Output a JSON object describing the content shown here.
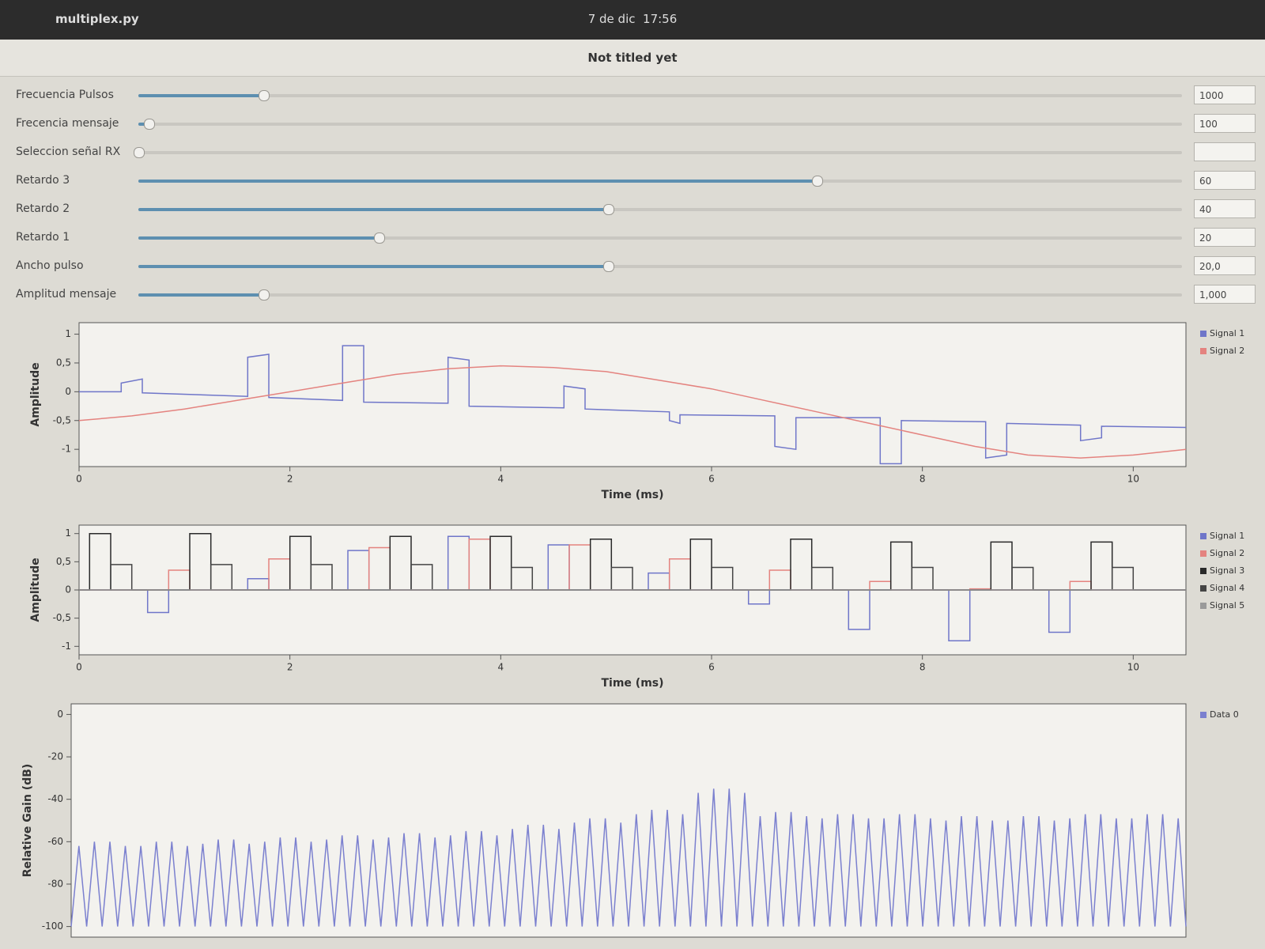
{
  "window": {
    "app_name": "multiplex.py",
    "date": "7 de dic",
    "time": "17:56",
    "title": "Not titled yet"
  },
  "sliders": [
    {
      "name": "Frecuencia Pulsos",
      "value": 1000,
      "label": "1000"
    },
    {
      "name": "Frecencia mensaje",
      "value": 100,
      "label": "100"
    },
    {
      "name": "Seleccion señal RX"
    },
    {
      "name": "Retardo 3",
      "value": 60,
      "label": "60"
    },
    {
      "name": "Retardo 2",
      "value": 40,
      "label": "40"
    },
    {
      "name": "Retardo 1",
      "value": 20,
      "label": "20"
    },
    {
      "name": "Ancho pulso",
      "value": 20,
      "label": "20,0"
    },
    {
      "name": "Amplitud mensaje",
      "value": 1,
      "label": "1,000"
    }
  ],
  "chart_data": [
    {
      "type": "line",
      "ylabel": "Amplitude",
      "xlabel": "Time (ms)",
      "xlim": [
        0,
        10.5
      ],
      "xticks": [
        0,
        2,
        4,
        6,
        8,
        10
      ],
      "ylim": [
        -1.3,
        1.2
      ],
      "yticks": [
        -1,
        {
          "value": -0.5,
          "label": "-0,5"
        },
        0,
        {
          "value": 0.5,
          "label": "0,5"
        },
        1
      ],
      "legend": "right",
      "series": [
        {
          "name": "Signal 1",
          "color": "#6f76c9",
          "x": [
            0,
            0.4,
            0.4,
            0.6,
            0.6,
            1.6,
            1.6,
            1.8,
            1.8,
            2.5,
            2.5,
            2.7,
            2.7,
            3.5,
            3.5,
            3.7,
            3.7,
            4.6,
            4.6,
            4.8,
            4.8,
            5.6,
            5.6,
            5.7,
            5.7,
            6.6,
            6.6,
            6.8,
            6.8,
            7.6,
            7.6,
            7.8,
            7.8,
            8.6,
            8.6,
            8.8,
            8.8,
            9.5,
            9.5,
            9.7,
            9.7,
            10.5
          ],
          "values": [
            0,
            0,
            0.15,
            0.22,
            -0.02,
            -0.08,
            0.6,
            0.65,
            -0.1,
            -0.15,
            0.8,
            0.8,
            -0.18,
            -0.2,
            0.6,
            0.55,
            -0.25,
            -0.28,
            0.1,
            0.05,
            -0.3,
            -0.35,
            -0.5,
            -0.55,
            -0.4,
            -0.42,
            -0.95,
            -1.0,
            -0.45,
            -0.45,
            -1.25,
            -1.25,
            -0.5,
            -0.52,
            -1.15,
            -1.1,
            -0.55,
            -0.58,
            -0.85,
            -0.8,
            -0.6,
            -0.62
          ]
        },
        {
          "name": "Signal 2",
          "color": "#e4837f",
          "x": [
            0,
            0.5,
            1,
            1.5,
            2,
            2.5,
            3,
            3.5,
            4,
            4.5,
            5,
            5.5,
            6,
            6.5,
            7,
            7.5,
            8,
            8.5,
            9,
            9.5,
            10,
            10.5
          ],
          "values": [
            -0.5,
            -0.42,
            -0.3,
            -0.15,
            0,
            0.15,
            0.3,
            0.4,
            0.45,
            0.42,
            0.35,
            0.2,
            0.05,
            -0.15,
            -0.35,
            -0.55,
            -0.75,
            -0.95,
            -1.1,
            -1.15,
            -1.1,
            -1.0
          ]
        }
      ]
    },
    {
      "type": "line",
      "ylabel": "Amplitude",
      "xlabel": "Time (ms)",
      "xlim": [
        0,
        10.5
      ],
      "xticks": [
        0,
        2,
        4,
        6,
        8,
        10
      ],
      "ylim": [
        -1.15,
        1.15
      ],
      "yticks": [
        -1,
        {
          "value": -0.5,
          "label": "-0,5"
        },
        0,
        {
          "value": 0.5,
          "label": "0,5"
        },
        1
      ],
      "legend": "right",
      "series": [
        {
          "name": "Signal 1",
          "color": "#6f76c9",
          "x": [
            0,
            0.65,
            0.65,
            0.85,
            0.85,
            1.6,
            1.6,
            1.8,
            1.8,
            2.55,
            2.55,
            2.75,
            2.75,
            3.5,
            3.5,
            3.7,
            3.7,
            4.45,
            4.45,
            4.65,
            4.65,
            5.4,
            5.4,
            5.6,
            5.6,
            6.35,
            6.35,
            6.55,
            6.55,
            7.3,
            7.3,
            7.5,
            7.5,
            8.25,
            8.25,
            8.45,
            8.45,
            9.2,
            9.2,
            9.4,
            9.4,
            10.5
          ],
          "values": [
            0,
            0,
            -0.4,
            -0.4,
            0,
            0,
            0.2,
            0.2,
            0,
            0,
            0.7,
            0.7,
            0,
            0,
            0.95,
            0.95,
            0,
            0,
            0.8,
            0.8,
            0,
            0,
            0.3,
            0.3,
            0,
            0,
            -0.25,
            -0.25,
            0,
            0,
            -0.7,
            -0.7,
            0,
            0,
            -0.9,
            -0.9,
            0,
            0,
            -0.75,
            -0.75,
            0,
            0
          ]
        },
        {
          "name": "Signal 2",
          "color": "#e4837f",
          "x": [
            0,
            0.85,
            0.85,
            1.05,
            1.05,
            1.8,
            1.8,
            2.0,
            2.0,
            2.75,
            2.75,
            2.95,
            2.95,
            3.7,
            3.7,
            3.9,
            3.9,
            4.65,
            4.65,
            4.85,
            4.85,
            5.6,
            5.6,
            5.8,
            5.8,
            6.55,
            6.55,
            6.75,
            6.75,
            7.5,
            7.5,
            7.7,
            7.7,
            8.45,
            8.45,
            8.65,
            8.65,
            9.4,
            9.4,
            9.6,
            9.6,
            10.5
          ],
          "values": [
            0,
            0,
            0.35,
            0.35,
            0,
            0,
            0.55,
            0.55,
            0,
            0,
            0.75,
            0.75,
            0,
            0,
            0.9,
            0.9,
            0,
            0,
            0.8,
            0.8,
            0,
            0,
            0.55,
            0.55,
            0,
            0,
            0.35,
            0.35,
            0,
            0,
            0.15,
            0.15,
            0,
            0,
            0.02,
            0.02,
            0,
            0,
            0.15,
            0.15,
            0,
            0
          ]
        },
        {
          "name": "Signal 3",
          "color": "#2a2a2a",
          "x": [
            0,
            0.1,
            0.1,
            0.3,
            0.3,
            1.05,
            1.05,
            1.25,
            1.25,
            2.0,
            2.0,
            2.2,
            2.2,
            2.95,
            2.95,
            3.15,
            3.15,
            3.9,
            3.9,
            4.1,
            4.1,
            4.85,
            4.85,
            5.05,
            5.05,
            5.8,
            5.8,
            6.0,
            6.0,
            6.75,
            6.75,
            6.95,
            6.95,
            7.7,
            7.7,
            7.9,
            7.9,
            8.65,
            8.65,
            8.85,
            8.85,
            9.6,
            9.6,
            9.8,
            9.8,
            10.5
          ],
          "values": [
            0,
            0,
            1.0,
            1.0,
            0,
            0,
            1.0,
            1.0,
            0,
            0,
            0.95,
            0.95,
            0,
            0,
            0.95,
            0.95,
            0,
            0,
            0.95,
            0.95,
            0,
            0,
            0.9,
            0.9,
            0,
            0,
            0.9,
            0.9,
            0,
            0,
            0.9,
            0.9,
            0,
            0,
            0.85,
            0.85,
            0,
            0,
            0.85,
            0.85,
            0,
            0,
            0.85,
            0.85,
            0,
            0
          ]
        },
        {
          "name": "Signal 4",
          "color": "#444444",
          "x": [
            0,
            0.3,
            0.3,
            0.5,
            0.5,
            1.25,
            1.25,
            1.45,
            1.45,
            2.2,
            2.2,
            2.4,
            2.4,
            3.15,
            3.15,
            3.35,
            3.35,
            4.1,
            4.1,
            4.3,
            4.3,
            5.05,
            5.05,
            5.25,
            5.25,
            6.0,
            6.0,
            6.2,
            6.2,
            6.95,
            6.95,
            7.15,
            7.15,
            7.9,
            7.9,
            8.1,
            8.1,
            8.85,
            8.85,
            9.05,
            9.05,
            9.8,
            9.8,
            10.0,
            10.0,
            10.5
          ],
          "values": [
            0,
            0,
            0.45,
            0.45,
            0,
            0,
            0.45,
            0.45,
            0,
            0,
            0.45,
            0.45,
            0,
            0,
            0.45,
            0.45,
            0,
            0,
            0.4,
            0.4,
            0,
            0,
            0.4,
            0.4,
            0,
            0,
            0.4,
            0.4,
            0,
            0,
            0.4,
            0.4,
            0,
            0,
            0.4,
            0.4,
            0,
            0,
            0.4,
            0.4,
            0,
            0,
            0.4,
            0.4,
            0,
            0
          ]
        },
        {
          "name": "Signal 5",
          "color": "#9a9a9a",
          "x": [
            0,
            10.5
          ],
          "values": [
            0,
            0
          ]
        }
      ]
    },
    {
      "type": "line",
      "ylabel": "Relative Gain (dB)",
      "ylim": [
        -105,
        5
      ],
      "yticks": [
        0,
        -20,
        -40,
        -60,
        -80,
        -100
      ],
      "legend": "right",
      "series": [
        {
          "name": "Data 0",
          "color": "#7b80cf",
          "values": [
            -100,
            -62,
            -100,
            -60,
            -100,
            -60,
            -100,
            -62,
            -100,
            -62,
            -100,
            -60,
            -100,
            -60,
            -100,
            -62,
            -100,
            -61,
            -100,
            -59,
            -100,
            -59,
            -100,
            -61,
            -100,
            -60,
            -100,
            -58,
            -100,
            -58,
            -100,
            -60,
            -100,
            -59,
            -100,
            -57,
            -100,
            -57,
            -100,
            -59,
            -100,
            -58,
            -100,
            -56,
            -100,
            -56,
            -100,
            -58,
            -100,
            -57,
            -100,
            -55,
            -100,
            -55,
            -100,
            -57,
            -100,
            -54,
            -100,
            -52,
            -100,
            -52,
            -100,
            -54,
            -100,
            -51,
            -100,
            -49,
            -100,
            -49,
            -100,
            -51,
            -100,
            -47,
            -100,
            -45,
            -100,
            -45,
            -100,
            -47,
            -100,
            -37,
            -100,
            -35,
            -100,
            -35,
            -100,
            -37,
            -100,
            -48,
            -100,
            -46,
            -100,
            -46,
            -100,
            -48,
            -100,
            -49,
            -100,
            -47,
            -100,
            -47,
            -100,
            -49,
            -100,
            -49,
            -100,
            -47,
            -100,
            -47,
            -100,
            -49,
            -100,
            -50,
            -100,
            -48,
            -100,
            -48,
            -100,
            -50,
            -100,
            -50,
            -100,
            -48,
            -100,
            -48,
            -100,
            -50,
            -100,
            -49,
            -100,
            -47,
            -100,
            -47,
            -100,
            -49,
            -100,
            -49,
            -100,
            -47,
            -100,
            -47,
            -100,
            -49,
            -100
          ]
        }
      ]
    }
  ]
}
